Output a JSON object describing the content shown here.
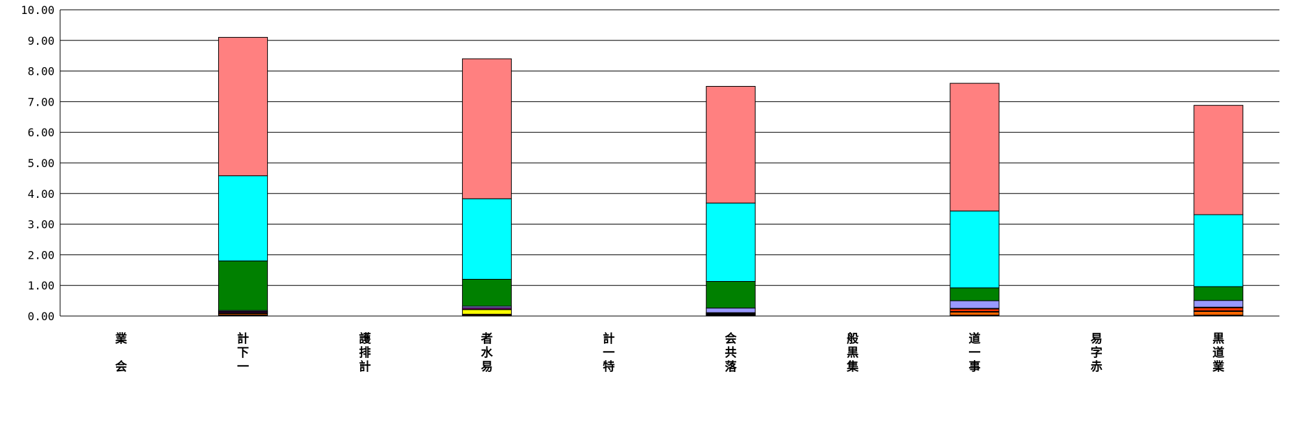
{
  "chart_data": {
    "type": "bar",
    "stacked": true,
    "title": "",
    "xlabel": "",
    "ylabel": "",
    "ylim": [
      0,
      10
    ],
    "yticks": [
      "0.00",
      "1.00",
      "2.00",
      "3.00",
      "4.00",
      "5.00",
      "6.00",
      "7.00",
      "8.00",
      "9.00",
      "10.00"
    ],
    "grid": true,
    "legend": "none",
    "categories": [
      [
        "業",
        "",
        "会"
      ],
      [
        "計",
        "下",
        "一"
      ],
      [
        "護",
        "排",
        "計"
      ],
      [
        "者",
        "水",
        "易"
      ],
      [
        "計",
        "一",
        "特"
      ],
      [
        "会",
        "共",
        "落"
      ],
      [
        "般",
        "黒",
        "集"
      ],
      [
        "道",
        "一",
        "事"
      ],
      [
        "易",
        "字",
        "赤"
      ],
      [
        "黒",
        "道",
        "業"
      ]
    ],
    "series": [
      {
        "color": "#000000",
        "values": [
          0,
          0.04,
          0,
          0.03,
          0,
          0.03,
          0,
          0.03,
          0,
          0.03
        ]
      },
      {
        "color": "#ff6600",
        "values": [
          0,
          0.04,
          0,
          0.03,
          0,
          0.02,
          0,
          0.1,
          0,
          0.12
        ]
      },
      {
        "color": "#ffff00",
        "values": [
          0,
          0.02,
          0,
          0.15,
          0,
          0.02,
          0,
          0.02,
          0,
          0.02
        ]
      },
      {
        "color": "#ff3300",
        "values": [
          0,
          0.02,
          0,
          0.02,
          0,
          0.02,
          0,
          0.08,
          0,
          0.1
        ]
      },
      {
        "color": "#ff00ff",
        "values": [
          0,
          0.03,
          0,
          0.04,
          0,
          0.02,
          0,
          0.02,
          0,
          0.02
        ]
      },
      {
        "color": "#9999ff",
        "values": [
          0,
          0.03,
          0,
          0.05,
          0,
          0.15,
          0,
          0.25,
          0,
          0.22
        ]
      },
      {
        "color": "#008000",
        "values": [
          0,
          1.62,
          0,
          0.88,
          0,
          0.87,
          0,
          0.42,
          0,
          0.45
        ]
      },
      {
        "color": "#00ffff",
        "values": [
          0,
          2.78,
          0,
          2.63,
          0,
          2.56,
          0,
          2.51,
          0,
          2.35
        ]
      },
      {
        "color": "#ff8080",
        "values": [
          0,
          4.52,
          0,
          4.57,
          0,
          3.81,
          0,
          4.17,
          0,
          3.57
        ]
      }
    ]
  }
}
